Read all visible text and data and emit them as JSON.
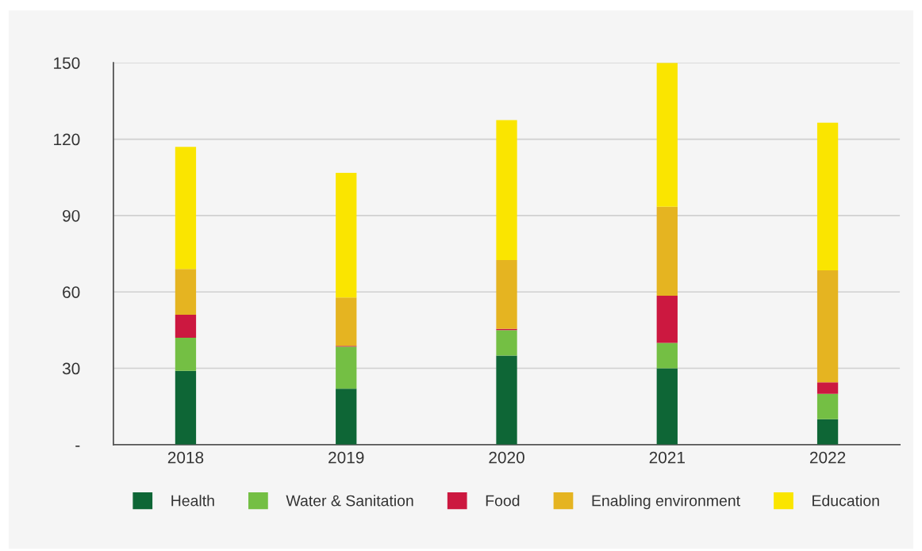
{
  "chart_data": {
    "type": "bar",
    "stacked": true,
    "categories": [
      "2018",
      "2019",
      "2020",
      "2021",
      "2022"
    ],
    "series": [
      {
        "name": "Health",
        "color": "#0e6636",
        "values": [
          29,
          22,
          35,
          30,
          10
        ]
      },
      {
        "name": "Water & Sanitation",
        "color": "#74bf44",
        "values": [
          13,
          16.5,
          10,
          10,
          10
        ]
      },
      {
        "name": "Food",
        "color": "#cc1840",
        "values": [
          9,
          0.3,
          0.5,
          18.5,
          4.5
        ]
      },
      {
        "name": "Enabling environment",
        "color": "#e5b421",
        "values": [
          18,
          19,
          27,
          35,
          44
        ]
      },
      {
        "name": "Education",
        "color": "#fae500",
        "values": [
          48,
          49,
          55,
          56.5,
          58
        ]
      }
    ],
    "ylim": [
      0,
      150
    ],
    "yticks": [
      {
        "value": 0,
        "label": "-"
      },
      30,
      60,
      90,
      120,
      150
    ],
    "grid": "y",
    "legend": "bottom"
  }
}
